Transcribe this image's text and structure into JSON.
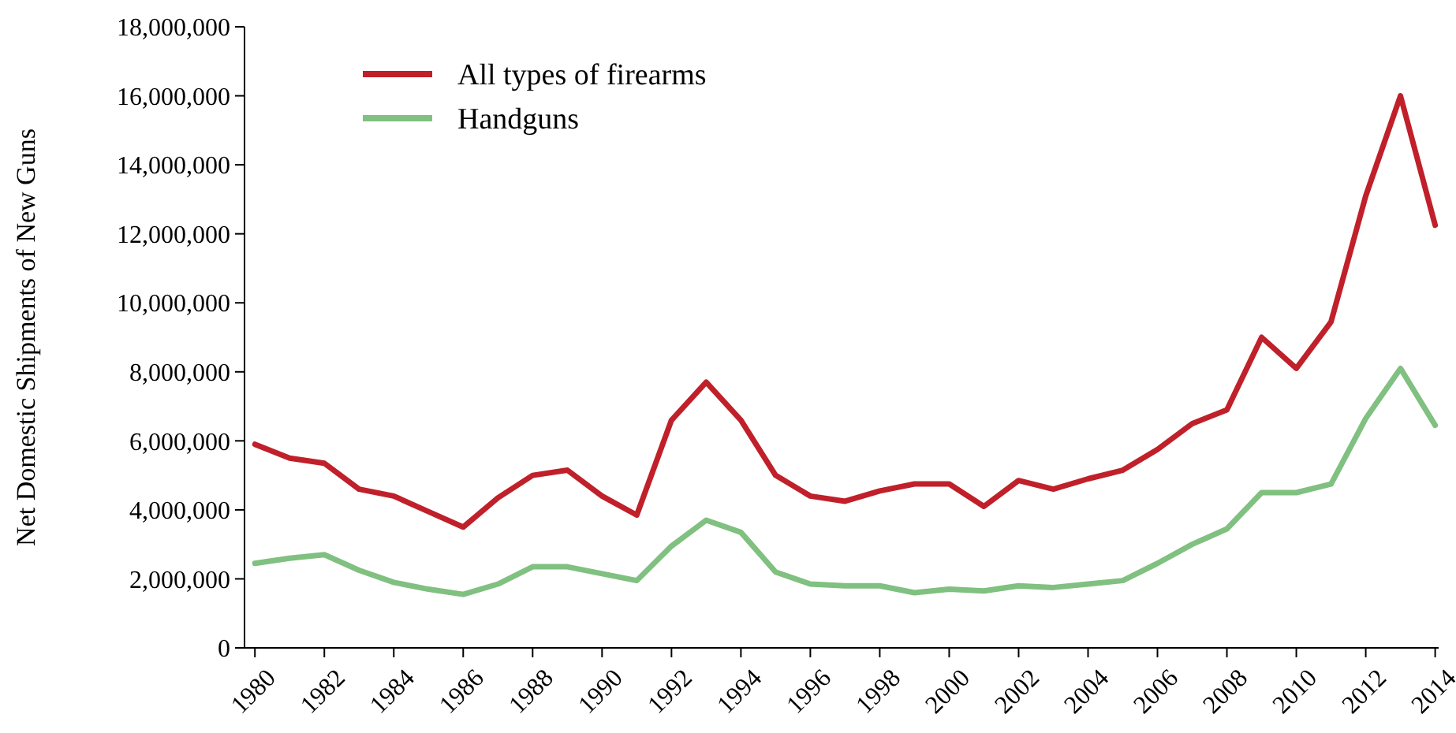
{
  "chart_data": {
    "type": "line",
    "ylabel": "Net Domestic Shipments of New Guns",
    "x": [
      1980,
      1981,
      1982,
      1983,
      1984,
      1985,
      1986,
      1987,
      1988,
      1989,
      1990,
      1991,
      1992,
      1993,
      1994,
      1995,
      1996,
      1997,
      1998,
      1999,
      2000,
      2001,
      2002,
      2003,
      2004,
      2005,
      2006,
      2007,
      2008,
      2009,
      2010,
      2011,
      2012,
      2013,
      2014
    ],
    "series": [
      {
        "name": "All types of firearms",
        "color": "#c0202a",
        "values": [
          5900000,
          5500000,
          5350000,
          4600000,
          4400000,
          3950000,
          3500000,
          4350000,
          5000000,
          5150000,
          4400000,
          3850000,
          6600000,
          7700000,
          6600000,
          5000000,
          4400000,
          4250000,
          4550000,
          4750000,
          4750000,
          4100000,
          4850000,
          4600000,
          4900000,
          5150000,
          5750000,
          6500000,
          6900000,
          9000000,
          8100000,
          9450000,
          13100000,
          16000000,
          12250000
        ]
      },
      {
        "name": "Handguns",
        "color": "#80c080",
        "values": [
          2450000,
          2600000,
          2700000,
          2250000,
          1900000,
          1700000,
          1550000,
          1850000,
          2350000,
          2350000,
          2150000,
          1950000,
          2950000,
          3700000,
          3350000,
          2200000,
          1850000,
          1800000,
          1800000,
          1600000,
          1700000,
          1650000,
          1800000,
          1750000,
          1850000,
          1950000,
          2450000,
          3000000,
          3450000,
          4500000,
          4500000,
          4750000,
          6650000,
          8100000,
          6450000
        ]
      }
    ],
    "xlim": [
      1979.7,
      2014.1
    ],
    "xticks": [
      1980,
      1982,
      1984,
      1986,
      1988,
      1990,
      1992,
      1994,
      1996,
      1998,
      2000,
      2002,
      2004,
      2006,
      2008,
      2010,
      2012,
      2014
    ],
    "ylim": [
      0,
      18000000
    ],
    "yticks": [
      {
        "value": 0,
        "label": "0"
      },
      {
        "value": 2000000,
        "label": "2,000,000"
      },
      {
        "value": 4000000,
        "label": "4,000,000"
      },
      {
        "value": 6000000,
        "label": "6,000,000"
      },
      {
        "value": 8000000,
        "label": "8,000,000"
      },
      {
        "value": 10000000,
        "label": "10,000,000"
      },
      {
        "value": 12000000,
        "label": "12,000,000"
      },
      {
        "value": 14000000,
        "label": "14,000,000"
      },
      {
        "value": 16000000,
        "label": "16,000,000"
      },
      {
        "value": 18000000,
        "label": "18,000,000"
      }
    ],
    "grid": false,
    "legend": "top left",
    "line_style": "solid",
    "marker": "none"
  }
}
